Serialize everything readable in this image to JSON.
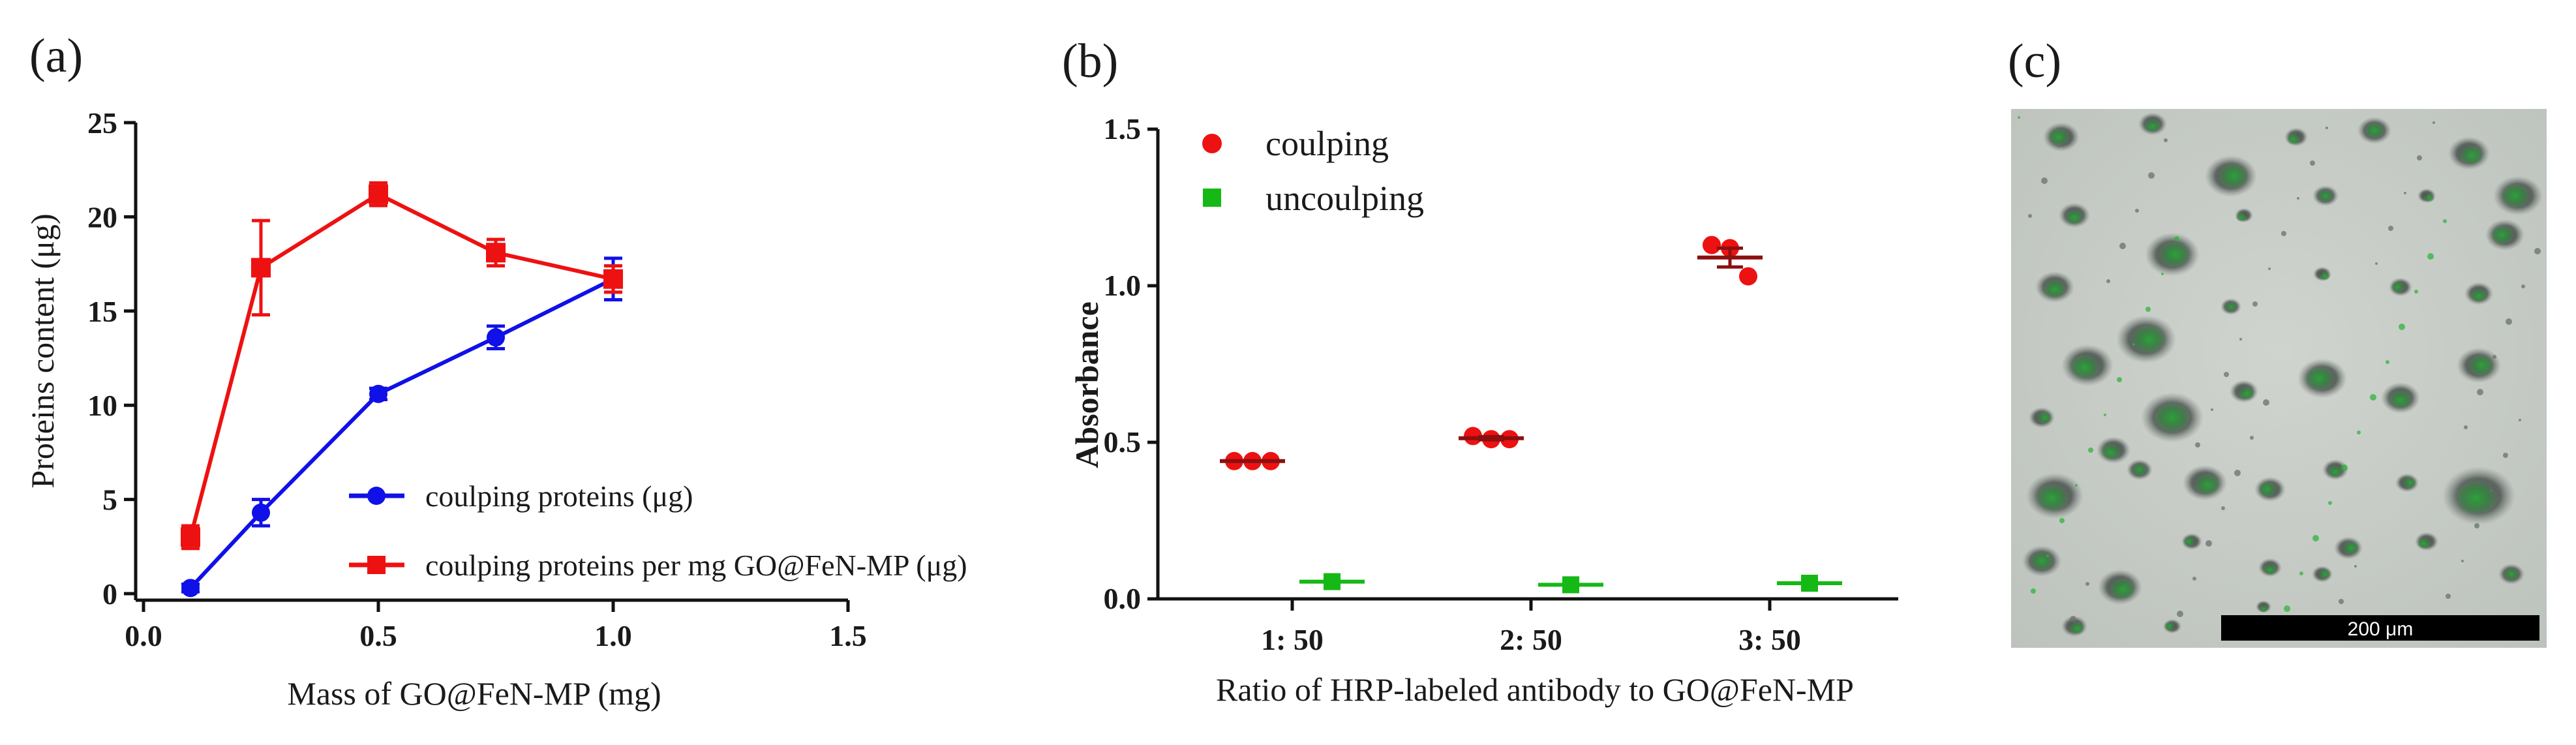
{
  "figure": {
    "panel_labels": [
      "(a)",
      "(b)",
      "(c)"
    ],
    "micrograph": {
      "scale_bar_label": "200 μm",
      "colors": {
        "background": "#c6cbc6",
        "dark_particle": "#4a524c",
        "fluorescence": "#2fb43c",
        "scale_bar": "#000000"
      }
    }
  },
  "chart_data": [
    {
      "type": "line",
      "title": "",
      "xlabel": "Mass of GO@FeN-MP (mg)",
      "ylabel": "Proteins content (μg)",
      "xlim": [
        0,
        1.5
      ],
      "ylim": [
        0,
        25
      ],
      "xticks": [
        "0.0",
        "0.5",
        "1.0",
        "1.5"
      ],
      "yticks": [
        "0",
        "5",
        "10",
        "15",
        "20",
        "25"
      ],
      "legend_position": "lower-right",
      "series": [
        {
          "name": "coulping proteins (μg)",
          "color": "#1010e8",
          "marker": "circle",
          "x": [
            0.1,
            0.25,
            0.5,
            0.75,
            1.0
          ],
          "y": [
            0.3,
            4.3,
            10.6,
            13.6,
            16.7
          ],
          "err": [
            0.2,
            0.7,
            0.3,
            0.6,
            1.1
          ]
        },
        {
          "name": "coulping proteins per mg GO@FeN-MP (μg)",
          "color": "#ee1111",
          "marker": "square",
          "x": [
            0.1,
            0.25,
            0.5,
            0.75,
            1.0
          ],
          "y": [
            3.0,
            17.3,
            21.2,
            18.1,
            16.7
          ],
          "err": [
            0.6,
            2.5,
            0.6,
            0.7,
            0.7
          ]
        }
      ]
    },
    {
      "type": "scatter",
      "title": "",
      "xlabel": "Ratio of HRP-labeled antibody to GO@FeN-MP",
      "ylabel": "Absorbance",
      "ylim": [
        0,
        1.5
      ],
      "yticks": [
        "0.0",
        "0.5",
        "1.0",
        "1.5"
      ],
      "categories": [
        "1: 50",
        "2: 50",
        "3: 50"
      ],
      "legend_position": "top-left",
      "series": [
        {
          "name": "coulping",
          "color": "#ee1111",
          "marker": "circle",
          "points": [
            [
              0.44,
              0.44,
              0.44
            ],
            [
              0.52,
              0.51,
              0.51
            ],
            [
              1.13,
              1.12,
              1.03
            ]
          ],
          "mean": [
            0.44,
            0.513,
            1.09
          ],
          "sem": [
            0.0,
            0.005,
            0.03
          ]
        },
        {
          "name": "uncoulping",
          "color": "#16b816",
          "marker": "square",
          "points": [
            [
              0.055
            ],
            [
              0.045
            ],
            [
              0.05
            ]
          ],
          "mean": [
            0.055,
            0.045,
            0.05
          ],
          "sem": [
            0.0,
            0.0,
            0.0
          ]
        }
      ]
    }
  ]
}
